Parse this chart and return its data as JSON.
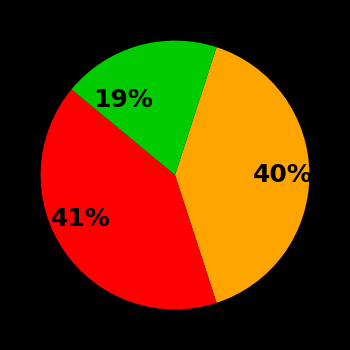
{
  "slices": [
    40,
    41,
    19
  ],
  "labels": [
    "40%",
    "41%",
    "19%"
  ],
  "colors": [
    "#FFA500",
    "#FF0000",
    "#00CC00"
  ],
  "background_color": "#000000",
  "text_color": "#000000",
  "startangle": 72,
  "label_fontsize": 18,
  "label_fontweight": "bold",
  "labeldistance": 0.58
}
